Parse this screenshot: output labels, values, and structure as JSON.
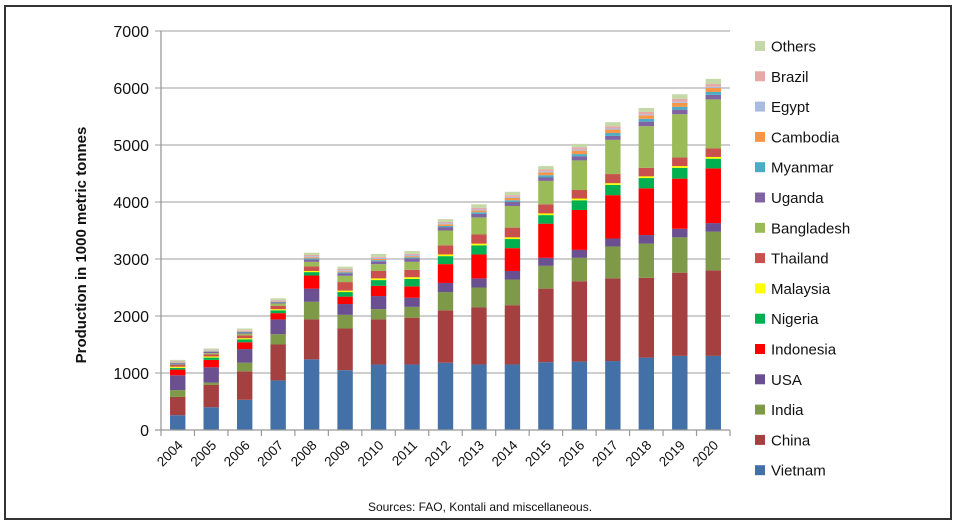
{
  "chart_data": {
    "type": "bar",
    "stacked": true,
    "title": "",
    "xlabel": "",
    "ylabel": "Production in 1000 metric tonnes",
    "ylim": [
      0,
      7000
    ],
    "yticks": [
      "0",
      "1000",
      "2000",
      "3000",
      "4000",
      "5000",
      "6000",
      "7000"
    ],
    "grid": true,
    "legend_position": "right",
    "categories": [
      "2004",
      "2005",
      "2006",
      "2007",
      "2008",
      "2009",
      "2010",
      "2011",
      "2012",
      "2013",
      "2014",
      "2015",
      "2016",
      "2017",
      "2018",
      "2019",
      "2020"
    ],
    "series": [
      {
        "name": "Vietnam",
        "color": "#4470A8",
        "values": [
          260,
          400,
          530,
          870,
          1240,
          1050,
          1150,
          1150,
          1180,
          1150,
          1150,
          1190,
          1200,
          1210,
          1270,
          1300,
          1300
        ]
      },
      {
        "name": "China",
        "color": "#A44040",
        "values": [
          320,
          390,
          500,
          630,
          700,
          730,
          790,
          820,
          920,
          1000,
          1040,
          1290,
          1410,
          1450,
          1400,
          1460,
          1500
        ]
      },
      {
        "name": "India",
        "color": "#7E9A48",
        "values": [
          120,
          40,
          150,
          180,
          310,
          240,
          180,
          190,
          320,
          350,
          450,
          400,
          410,
          560,
          600,
          620,
          680
        ]
      },
      {
        "name": "USA",
        "color": "#6A5090",
        "values": [
          260,
          270,
          240,
          260,
          230,
          190,
          230,
          160,
          160,
          160,
          150,
          140,
          140,
          140,
          150,
          150,
          150
        ]
      },
      {
        "name": "Indonesia",
        "color": "#FF0000",
        "values": [
          100,
          130,
          120,
          110,
          230,
          130,
          180,
          200,
          330,
          420,
          400,
          600,
          700,
          760,
          820,
          880,
          960
        ]
      },
      {
        "name": "Nigeria",
        "color": "#00B050",
        "values": [
          30,
          40,
          50,
          50,
          60,
          80,
          100,
          130,
          140,
          160,
          160,
          150,
          170,
          180,
          180,
          190,
          170
        ]
      },
      {
        "name": "Malaysia",
        "color": "#FFFF00",
        "values": [
          20,
          20,
          20,
          20,
          20,
          25,
          30,
          30,
          30,
          30,
          30,
          30,
          30,
          30,
          30,
          30,
          30
        ]
      },
      {
        "name": "Thailand",
        "color": "#C9504C",
        "values": [
          30,
          40,
          50,
          60,
          80,
          150,
          130,
          130,
          160,
          160,
          170,
          160,
          150,
          160,
          150,
          150,
          150
        ]
      },
      {
        "name": "Bangladesh",
        "color": "#9BBB59",
        "values": [
          10,
          20,
          30,
          40,
          80,
          110,
          120,
          140,
          260,
          300,
          380,
          410,
          520,
          600,
          730,
          760,
          860
        ]
      },
      {
        "name": "Uganda",
        "color": "#8064A2",
        "values": [
          20,
          20,
          20,
          20,
          40,
          40,
          50,
          60,
          60,
          60,
          70,
          60,
          70,
          70,
          80,
          80,
          80
        ]
      },
      {
        "name": "Myanmar",
        "color": "#4BACC6",
        "values": [
          10,
          10,
          10,
          10,
          20,
          20,
          20,
          20,
          20,
          30,
          30,
          40,
          40,
          50,
          50,
          50,
          50
        ]
      },
      {
        "name": "Cambodia",
        "color": "#F79646",
        "values": [
          10,
          10,
          10,
          10,
          20,
          20,
          20,
          20,
          30,
          30,
          40,
          50,
          60,
          60,
          60,
          70,
          70
        ]
      },
      {
        "name": "Egypt",
        "color": "#A9BCE0",
        "values": [
          10,
          10,
          10,
          10,
          20,
          20,
          20,
          20,
          20,
          20,
          20,
          20,
          20,
          20,
          20,
          20,
          20
        ]
      },
      {
        "name": "Brazil",
        "color": "#E6A9A8",
        "values": [
          10,
          10,
          10,
          10,
          20,
          20,
          20,
          20,
          20,
          30,
          30,
          30,
          40,
          40,
          40,
          50,
          50
        ]
      },
      {
        "name": "Others",
        "color": "#C4D8A8",
        "values": [
          20,
          20,
          30,
          30,
          40,
          40,
          50,
          50,
          50,
          60,
          60,
          60,
          60,
          70,
          70,
          80,
          90
        ]
      }
    ],
    "source_note": "Sources: FAO, Kontali and miscellaneous."
  }
}
